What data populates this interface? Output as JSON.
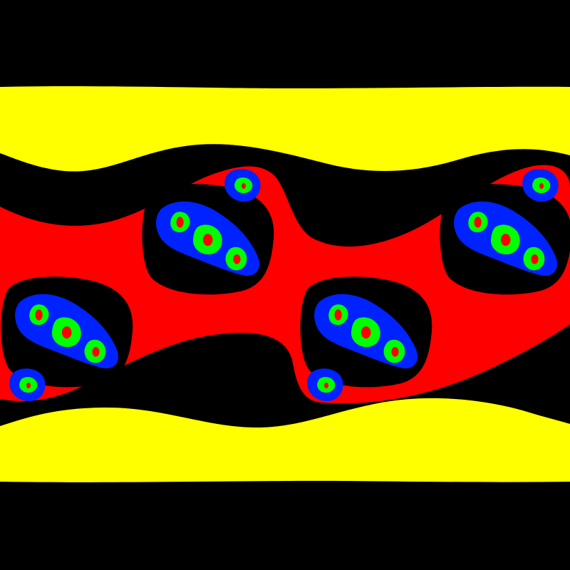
{
  "image": {
    "kind": "fractal-escape-time-render",
    "palette": {
      "background": "#000000",
      "outer_band": "#ffff00",
      "middle_band": "#ff0000",
      "island_fill": "#0022ff",
      "inner_fill": "#00ff00",
      "core_fill": "#ff0000"
    }
  }
}
